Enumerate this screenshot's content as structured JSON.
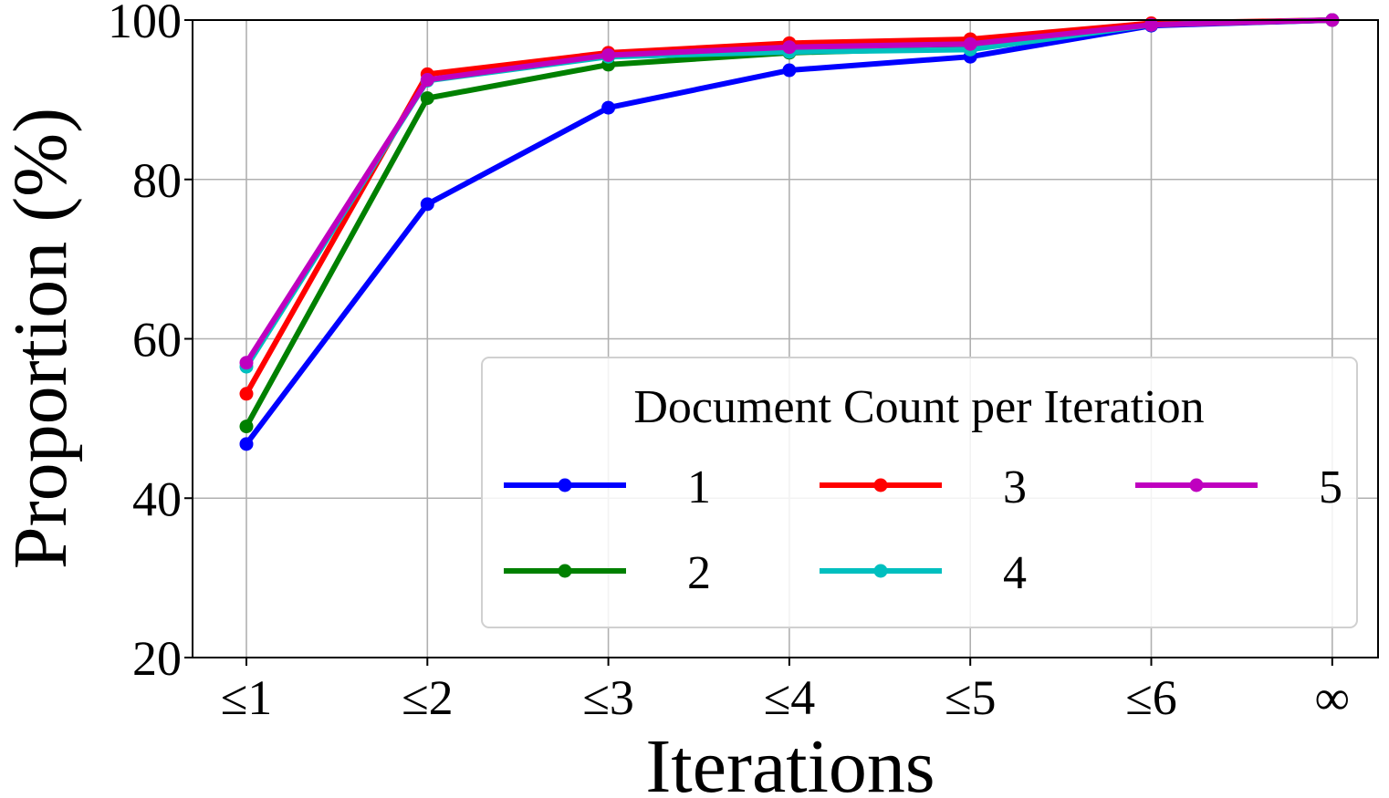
{
  "chart_data": {
    "type": "line",
    "title": "",
    "xlabel": "Iterations",
    "ylabel": "Proportion (%)",
    "categories": [
      "≤1",
      "≤2",
      "≤3",
      "≤4",
      "≤5",
      "≤6",
      "∞"
    ],
    "ylim": [
      20,
      100
    ],
    "yticks": [
      20,
      40,
      60,
      80,
      100
    ],
    "grid": true,
    "legend": {
      "title": "Document Count per Iteration",
      "placement": "lower-right",
      "columns": 3
    },
    "series": [
      {
        "name": "1",
        "color": "#0000ff",
        "values": [
          46.8,
          76.9,
          89.0,
          93.7,
          95.4,
          99.3,
          100
        ]
      },
      {
        "name": "2",
        "color": "#008000",
        "values": [
          49.0,
          90.2,
          94.4,
          95.9,
          96.5,
          99.4,
          100
        ]
      },
      {
        "name": "3",
        "color": "#ff0000",
        "values": [
          53.1,
          93.2,
          95.9,
          97.1,
          97.6,
          99.6,
          100
        ]
      },
      {
        "name": "4",
        "color": "#00bfbf",
        "values": [
          56.5,
          92.4,
          95.4,
          96.0,
          96.3,
          99.4,
          100
        ]
      },
      {
        "name": "5",
        "color": "#bf00bf",
        "values": [
          57.0,
          92.5,
          95.6,
          96.6,
          97.0,
          99.4,
          100
        ]
      }
    ]
  }
}
